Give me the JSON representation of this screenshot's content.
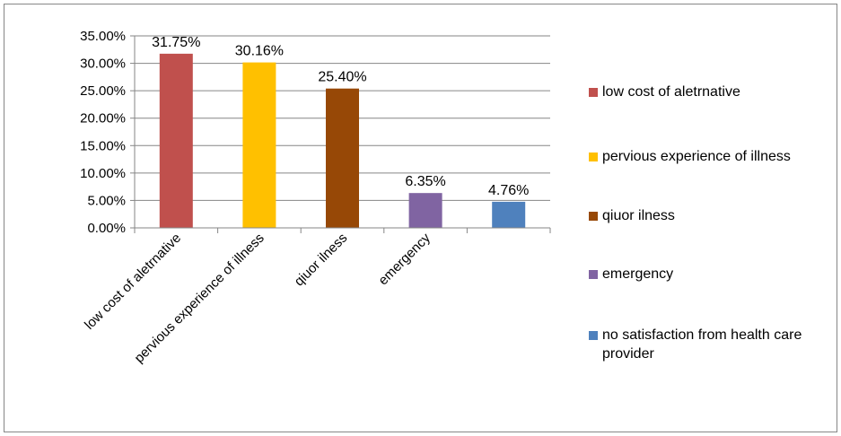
{
  "chart_data": {
    "type": "bar",
    "categories": [
      "low cost of aletrnative",
      "pervious experience of illness",
      "qiuor ilness",
      "emergency",
      ""
    ],
    "values": [
      31.75,
      30.16,
      25.4,
      6.35,
      4.76
    ],
    "data_labels": [
      "31.75%",
      "30.16%",
      "25.40%",
      "6.35%",
      "4.76%"
    ],
    "colors": [
      "#C0504D",
      "#FFC000",
      "#974806",
      "#8064A2",
      "#4F81BD"
    ],
    "ylim": [
      0,
      35
    ],
    "y_ticks": [
      "0.00%",
      "5.00%",
      "10.00%",
      "15.00%",
      "20.00%",
      "25.00%",
      "30.00%",
      "35.00%"
    ],
    "grid": true,
    "legend_position": "right",
    "legend": [
      {
        "label": "low cost of aletrnative",
        "color": "#C0504D"
      },
      {
        "label": "pervious experience of illness",
        "color": "#FFC000"
      },
      {
        "label": "qiuor ilness",
        "color": "#974806"
      },
      {
        "label": "emergency",
        "color": "#8064A2"
      },
      {
        "label": "no satisfaction from health care provider",
        "color": "#4F81BD"
      }
    ],
    "title": "",
    "xlabel": "",
    "ylabel": ""
  }
}
